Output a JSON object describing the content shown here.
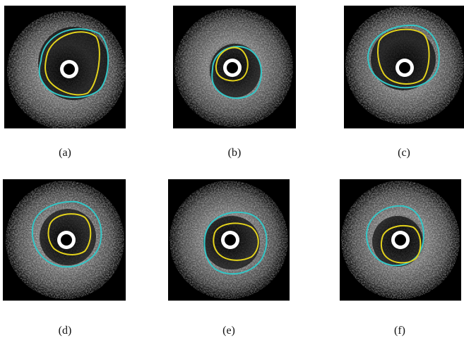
{
  "figure": {
    "panels": [
      {
        "caption": "(a)"
      },
      {
        "caption": "(b)"
      },
      {
        "caption": "(c)"
      },
      {
        "caption": "(d)"
      },
      {
        "caption": "(e)"
      },
      {
        "caption": "(f)"
      }
    ],
    "colors": {
      "outer_contour": "#33c6c6",
      "inner_contour": "#e3d21c",
      "background": "#000000",
      "page": "#ffffff"
    }
  }
}
